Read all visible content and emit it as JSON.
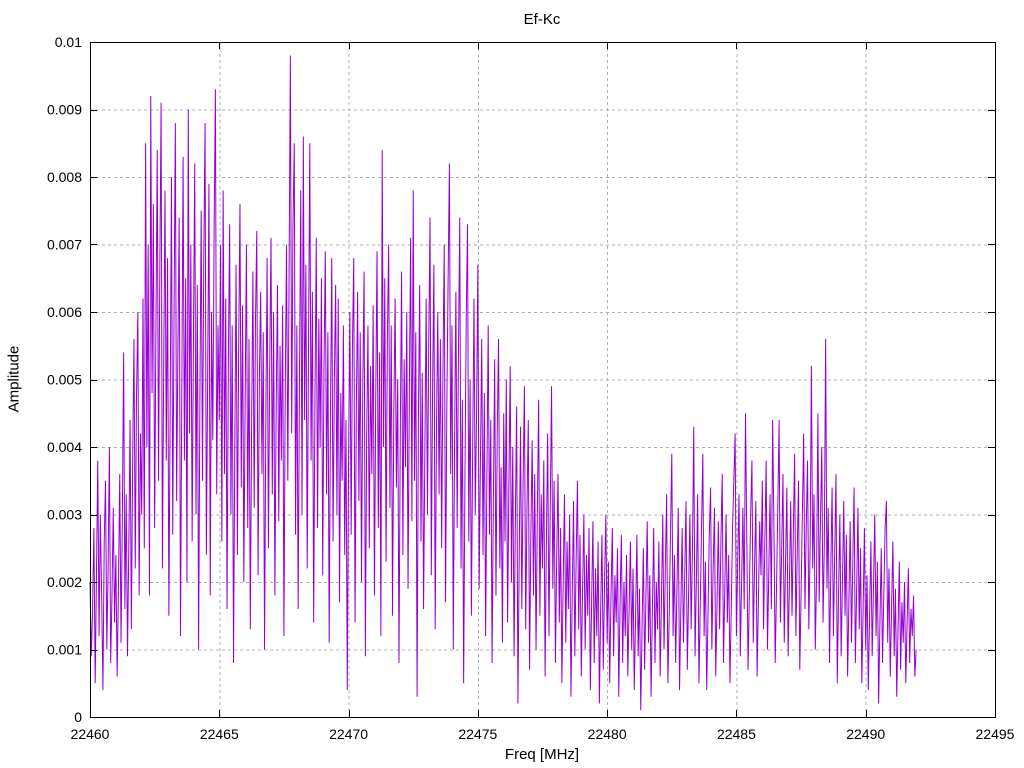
{
  "colors": {
    "line": "#9400D3",
    "grid": "#b0b0b0",
    "axis": "#000000",
    "background": "#ffffff",
    "text": "#000000"
  },
  "chart_data": {
    "type": "line",
    "title": "Ef-Kc",
    "xlabel": "Freq [MHz]",
    "ylabel": "Amplitude",
    "xlim": [
      22460,
      22495
    ],
    "ylim": [
      0,
      0.01
    ],
    "grid": "dashed, at every major tick",
    "legend": "none",
    "x_tick_values": [
      22460,
      22465,
      22470,
      22475,
      22480,
      22485,
      22490,
      22495
    ],
    "x_tick_labels": [
      "22460",
      "22465",
      "22470",
      "22475",
      "22480",
      "22485",
      "22490",
      "22495"
    ],
    "y_tick_values": [
      0,
      0.001,
      0.002,
      0.003,
      0.004,
      0.005,
      0.006,
      0.007,
      0.008,
      0.009,
      0.01
    ],
    "y_tick_labels": [
      "0",
      "0.001",
      "0.002",
      "0.003",
      "0.004",
      "0.005",
      "0.006",
      "0.007",
      "0.008",
      "0.009",
      "0.01"
    ],
    "series_note": "noisy amplitude spectrum from 22460 to ~22492 MHz; amplitude = value * values_scale",
    "x_start": 22460.0,
    "x_step": 0.05,
    "values_scale": 0.0001,
    "values": [
      20,
      9,
      16,
      28,
      5,
      21,
      38,
      12,
      30,
      18,
      4,
      26,
      35,
      10,
      22,
      40,
      8,
      18,
      31,
      14,
      24,
      6,
      19,
      36,
      11,
      29,
      54,
      16,
      33,
      9,
      25,
      44,
      13,
      38,
      56,
      22,
      48,
      60,
      18,
      42,
      30,
      62,
      25,
      85,
      40,
      70,
      18,
      92,
      48,
      76,
      28,
      58,
      84,
      35,
      66,
      91,
      22,
      52,
      78,
      38,
      68,
      15,
      45,
      80,
      27,
      60,
      88,
      32,
      55,
      74,
      12,
      48,
      83,
      38,
      65,
      20,
      90,
      42,
      70,
      26,
      56,
      82,
      30,
      64,
      10,
      47,
      75,
      35,
      68,
      88,
      24,
      50,
      79,
      18,
      60,
      41,
      72,
      93,
      33,
      58,
      44,
      70,
      26,
      78,
      36,
      62,
      16,
      52,
      73,
      30,
      58,
      8,
      40,
      67,
      24,
      55,
      76,
      34,
      61,
      20,
      47,
      70,
      28,
      56,
      13,
      43,
      66,
      31,
      59,
      72,
      21,
      50,
      63,
      36,
      57,
      10,
      44,
      68,
      25,
      52,
      71,
      33,
      60,
      18,
      46,
      64,
      29,
      55,
      38,
      61,
      12,
      48,
      70,
      35,
      66,
      98,
      42,
      73,
      85,
      27,
      58,
      16,
      49,
      78,
      30,
      86,
      44,
      67,
      22,
      54,
      85,
      38,
      63,
      14,
      47,
      71,
      28,
      59,
      40,
      65,
      21,
      52,
      69,
      33,
      57,
      11,
      45,
      68,
      26,
      50,
      64,
      30,
      62,
      17,
      48,
      35,
      58,
      24,
      44,
      4,
      38,
      60,
      27,
      55,
      68,
      14,
      46,
      63,
      32,
      57,
      20,
      49,
      66,
      9,
      42,
      58,
      25,
      52,
      36,
      61,
      18,
      47,
      69,
      28,
      54,
      12,
      84,
      40,
      65,
      23,
      56,
      70,
      31,
      58,
      15,
      45,
      62,
      34,
      50,
      8,
      42,
      66,
      24,
      53,
      37,
      60,
      19,
      48,
      71,
      29,
      78,
      35,
      57,
      3,
      44,
      64,
      26,
      51,
      16,
      39,
      62,
      30,
      55,
      74,
      21,
      49,
      67,
      13,
      43,
      60,
      33,
      56,
      25,
      52,
      70,
      17,
      46,
      65,
      82,
      36,
      58,
      10,
      41,
      63,
      28,
      54,
      74,
      22,
      47,
      5,
      35,
      59,
      73,
      26,
      50,
      15,
      40,
      62,
      30,
      45,
      67,
      19,
      38,
      56,
      24,
      48,
      12,
      36,
      58,
      27,
      44,
      8,
      32,
      53,
      18,
      42,
      56,
      22,
      37,
      11,
      45,
      26,
      50,
      14,
      34,
      52,
      20,
      40,
      9,
      29,
      46,
      2,
      24,
      43,
      16,
      35,
      49,
      13,
      31,
      44,
      7,
      27,
      41,
      18,
      36,
      10,
      30,
      47,
      15,
      33,
      22,
      38,
      6,
      26,
      42,
      12,
      31,
      49,
      19,
      35,
      8,
      24,
      36,
      14,
      28,
      5,
      20,
      33,
      11,
      26,
      16,
      30,
      3,
      18,
      32,
      9,
      23,
      35,
      13,
      27,
      6,
      19,
      30,
      10,
      24,
      15,
      28,
      4,
      17,
      29,
      8,
      22,
      12,
      26,
      2,
      16,
      27,
      7,
      20,
      30,
      11,
      23,
      5,
      18,
      28,
      9,
      21,
      14,
      25,
      3,
      17,
      27,
      8,
      20,
      12,
      24,
      6,
      16,
      26,
      10,
      22,
      4,
      15,
      27,
      9,
      19,
      1,
      13,
      25,
      7,
      18,
      29,
      11,
      21,
      3,
      16,
      28,
      8,
      20,
      13,
      26,
      6,
      17,
      30,
      10,
      22,
      33,
      5,
      15,
      27,
      39,
      12,
      24,
      8,
      19,
      31,
      4,
      16,
      28,
      11,
      21,
      32,
      7,
      18,
      30,
      13,
      25,
      43,
      9,
      20,
      33,
      5,
      16,
      28,
      39,
      12,
      23,
      4,
      15,
      27,
      34,
      10,
      22,
      31,
      6,
      17,
      29,
      13,
      26,
      36,
      8,
      19,
      30,
      14,
      24,
      5,
      16,
      28,
      35,
      42,
      12,
      23,
      33,
      9,
      20,
      31,
      16,
      45,
      27,
      7,
      18,
      30,
      38,
      11,
      22,
      32,
      6,
      17,
      29,
      21,
      35,
      13,
      26,
      38,
      10,
      21,
      33,
      16,
      44,
      28,
      8,
      19,
      31,
      44,
      14,
      25,
      36,
      11,
      23,
      34,
      9,
      20,
      32,
      15,
      27,
      39,
      12,
      24,
      35,
      7,
      18,
      30,
      42,
      16,
      28,
      38,
      13,
      25,
      52,
      22,
      33,
      10,
      21,
      45,
      17,
      29,
      40,
      14,
      26,
      56,
      19,
      31,
      8,
      22,
      34,
      12,
      24,
      36,
      5,
      18,
      30,
      9,
      20,
      32,
      15,
      27,
      6,
      17,
      29,
      11,
      23,
      34,
      8,
      19,
      31,
      13,
      25,
      5,
      16,
      28,
      10,
      21,
      4,
      15,
      26,
      9,
      19,
      30,
      12,
      23,
      2,
      14,
      25,
      8,
      18,
      28,
      32,
      11,
      22,
      6,
      16,
      26,
      9,
      19,
      3,
      13,
      23,
      7,
      17,
      11,
      20,
      5,
      14,
      22,
      8,
      16,
      12,
      18,
      6,
      10
    ]
  }
}
